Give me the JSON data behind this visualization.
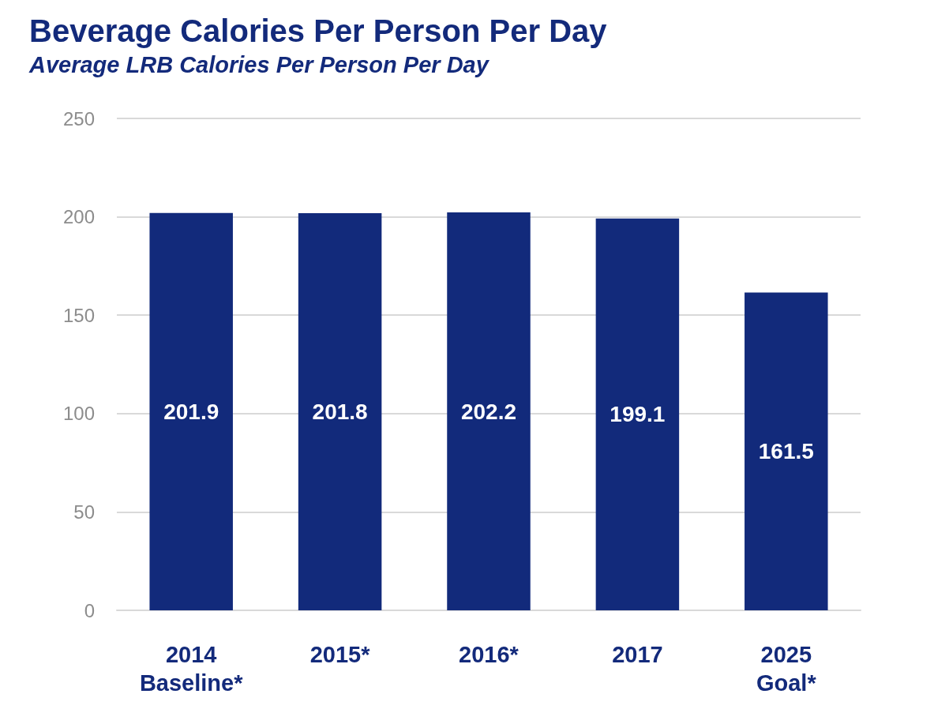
{
  "chart_data": {
    "type": "bar",
    "title": "Beverage Calories Per Person Per Day",
    "subtitle": "Average LRB Calories Per Person Per Day",
    "categories": [
      "2014\nBaseline*",
      "2015*",
      "2016*",
      "2017",
      "2025\nGoal*"
    ],
    "values": [
      201.9,
      201.8,
      202.2,
      199.1,
      161.5
    ],
    "color": "#122a7b",
    "ylim": [
      0,
      250
    ],
    "yticks": [
      0,
      50,
      100,
      150,
      200,
      250
    ],
    "grid": "y",
    "data_labels": true
  }
}
